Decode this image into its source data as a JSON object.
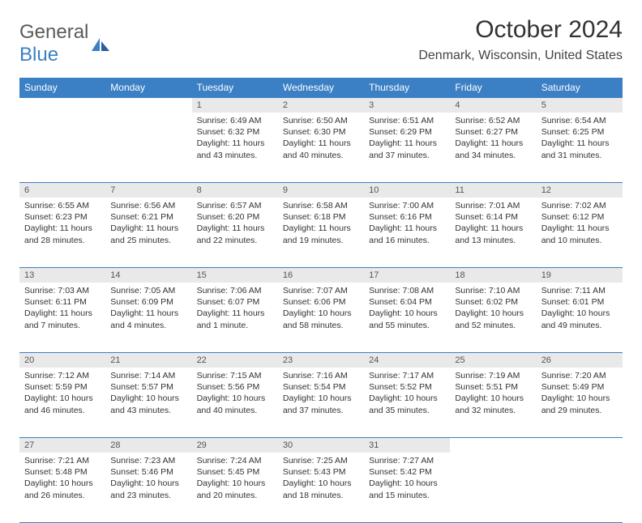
{
  "logo": {
    "text1": "General",
    "text2": "Blue"
  },
  "title": "October 2024",
  "location": "Denmark, Wisconsin, United States",
  "weekdays": [
    "Sunday",
    "Monday",
    "Tuesday",
    "Wednesday",
    "Thursday",
    "Friday",
    "Saturday"
  ],
  "colors": {
    "header_bg": "#3b7fc4",
    "daynum_bg": "#e9e9e9",
    "border": "#3b7fc4"
  },
  "weeks": [
    [
      {
        "n": "",
        "t": ""
      },
      {
        "n": "",
        "t": ""
      },
      {
        "n": "1",
        "t": "Sunrise: 6:49 AM\nSunset: 6:32 PM\nDaylight: 11 hours and 43 minutes."
      },
      {
        "n": "2",
        "t": "Sunrise: 6:50 AM\nSunset: 6:30 PM\nDaylight: 11 hours and 40 minutes."
      },
      {
        "n": "3",
        "t": "Sunrise: 6:51 AM\nSunset: 6:29 PM\nDaylight: 11 hours and 37 minutes."
      },
      {
        "n": "4",
        "t": "Sunrise: 6:52 AM\nSunset: 6:27 PM\nDaylight: 11 hours and 34 minutes."
      },
      {
        "n": "5",
        "t": "Sunrise: 6:54 AM\nSunset: 6:25 PM\nDaylight: 11 hours and 31 minutes."
      }
    ],
    [
      {
        "n": "6",
        "t": "Sunrise: 6:55 AM\nSunset: 6:23 PM\nDaylight: 11 hours and 28 minutes."
      },
      {
        "n": "7",
        "t": "Sunrise: 6:56 AM\nSunset: 6:21 PM\nDaylight: 11 hours and 25 minutes."
      },
      {
        "n": "8",
        "t": "Sunrise: 6:57 AM\nSunset: 6:20 PM\nDaylight: 11 hours and 22 minutes."
      },
      {
        "n": "9",
        "t": "Sunrise: 6:58 AM\nSunset: 6:18 PM\nDaylight: 11 hours and 19 minutes."
      },
      {
        "n": "10",
        "t": "Sunrise: 7:00 AM\nSunset: 6:16 PM\nDaylight: 11 hours and 16 minutes."
      },
      {
        "n": "11",
        "t": "Sunrise: 7:01 AM\nSunset: 6:14 PM\nDaylight: 11 hours and 13 minutes."
      },
      {
        "n": "12",
        "t": "Sunrise: 7:02 AM\nSunset: 6:12 PM\nDaylight: 11 hours and 10 minutes."
      }
    ],
    [
      {
        "n": "13",
        "t": "Sunrise: 7:03 AM\nSunset: 6:11 PM\nDaylight: 11 hours and 7 minutes."
      },
      {
        "n": "14",
        "t": "Sunrise: 7:05 AM\nSunset: 6:09 PM\nDaylight: 11 hours and 4 minutes."
      },
      {
        "n": "15",
        "t": "Sunrise: 7:06 AM\nSunset: 6:07 PM\nDaylight: 11 hours and 1 minute."
      },
      {
        "n": "16",
        "t": "Sunrise: 7:07 AM\nSunset: 6:06 PM\nDaylight: 10 hours and 58 minutes."
      },
      {
        "n": "17",
        "t": "Sunrise: 7:08 AM\nSunset: 6:04 PM\nDaylight: 10 hours and 55 minutes."
      },
      {
        "n": "18",
        "t": "Sunrise: 7:10 AM\nSunset: 6:02 PM\nDaylight: 10 hours and 52 minutes."
      },
      {
        "n": "19",
        "t": "Sunrise: 7:11 AM\nSunset: 6:01 PM\nDaylight: 10 hours and 49 minutes."
      }
    ],
    [
      {
        "n": "20",
        "t": "Sunrise: 7:12 AM\nSunset: 5:59 PM\nDaylight: 10 hours and 46 minutes."
      },
      {
        "n": "21",
        "t": "Sunrise: 7:14 AM\nSunset: 5:57 PM\nDaylight: 10 hours and 43 minutes."
      },
      {
        "n": "22",
        "t": "Sunrise: 7:15 AM\nSunset: 5:56 PM\nDaylight: 10 hours and 40 minutes."
      },
      {
        "n": "23",
        "t": "Sunrise: 7:16 AM\nSunset: 5:54 PM\nDaylight: 10 hours and 37 minutes."
      },
      {
        "n": "24",
        "t": "Sunrise: 7:17 AM\nSunset: 5:52 PM\nDaylight: 10 hours and 35 minutes."
      },
      {
        "n": "25",
        "t": "Sunrise: 7:19 AM\nSunset: 5:51 PM\nDaylight: 10 hours and 32 minutes."
      },
      {
        "n": "26",
        "t": "Sunrise: 7:20 AM\nSunset: 5:49 PM\nDaylight: 10 hours and 29 minutes."
      }
    ],
    [
      {
        "n": "27",
        "t": "Sunrise: 7:21 AM\nSunset: 5:48 PM\nDaylight: 10 hours and 26 minutes."
      },
      {
        "n": "28",
        "t": "Sunrise: 7:23 AM\nSunset: 5:46 PM\nDaylight: 10 hours and 23 minutes."
      },
      {
        "n": "29",
        "t": "Sunrise: 7:24 AM\nSunset: 5:45 PM\nDaylight: 10 hours and 20 minutes."
      },
      {
        "n": "30",
        "t": "Sunrise: 7:25 AM\nSunset: 5:43 PM\nDaylight: 10 hours and 18 minutes."
      },
      {
        "n": "31",
        "t": "Sunrise: 7:27 AM\nSunset: 5:42 PM\nDaylight: 10 hours and 15 minutes."
      },
      {
        "n": "",
        "t": ""
      },
      {
        "n": "",
        "t": ""
      }
    ]
  ]
}
